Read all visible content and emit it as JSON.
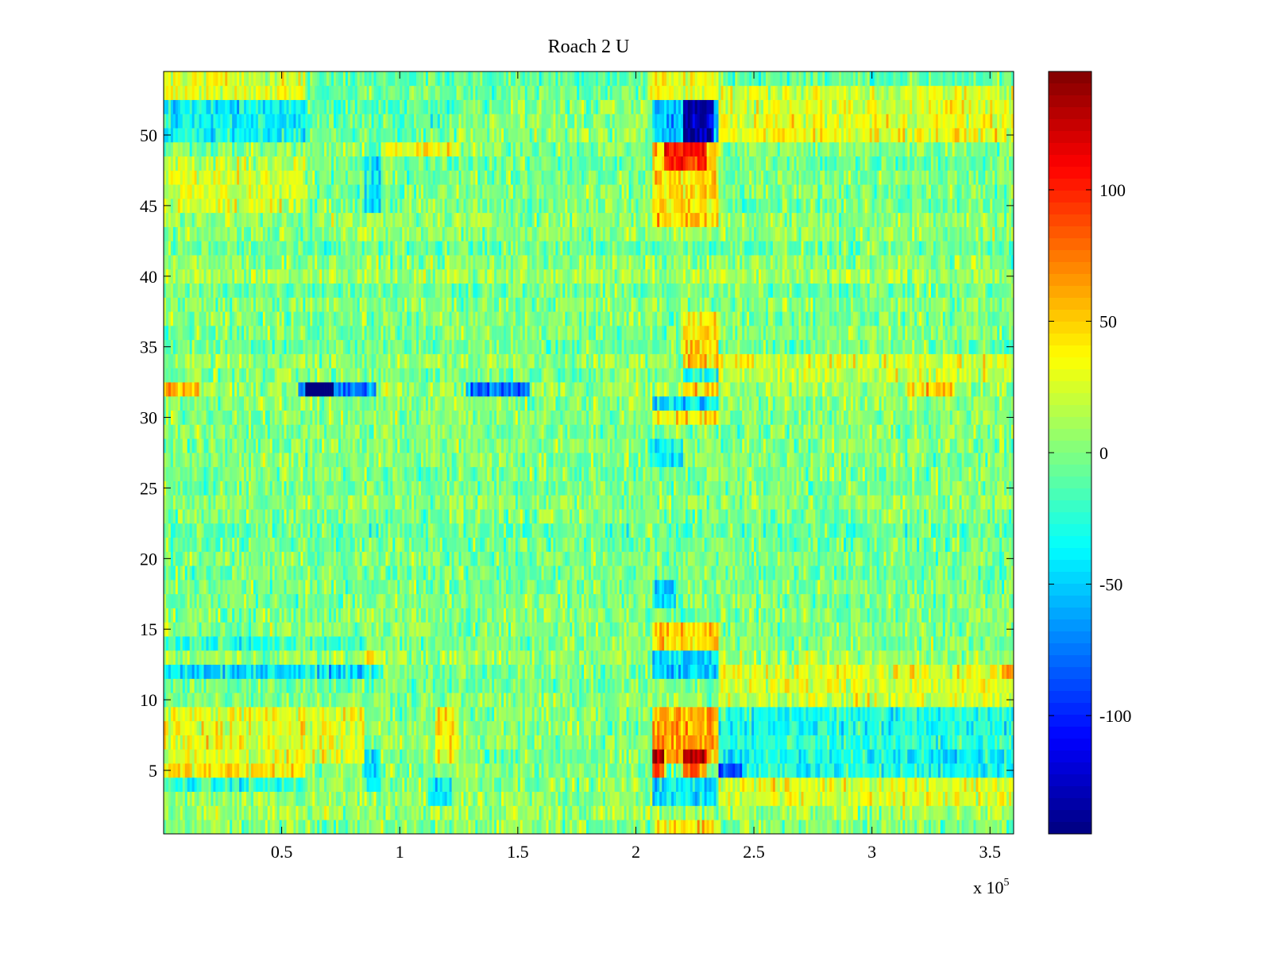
{
  "chart_data": {
    "type": "heatmap",
    "title": "Roach 2 U",
    "xlabel": "",
    "ylabel": "",
    "x_exponent_label": "x 10",
    "x_exponent_power": "5",
    "x_scale": 100000,
    "xlim": [
      0,
      3.6
    ],
    "ylim": [
      0.5,
      54.5
    ],
    "x_ticks": [
      0.5,
      1,
      1.5,
      2,
      2.5,
      3,
      3.5
    ],
    "x_tick_labels": [
      "0.5",
      "1",
      "1.5",
      "2",
      "2.5",
      "3",
      "3.5"
    ],
    "y_ticks": [
      5,
      10,
      15,
      20,
      25,
      30,
      35,
      40,
      45,
      50
    ],
    "y_tick_labels": [
      "5",
      "10",
      "15",
      "20",
      "25",
      "30",
      "35",
      "40",
      "45",
      "50"
    ],
    "rows": 54,
    "columns": 360,
    "colormap": "jet",
    "color_limits": [
      -145,
      145
    ],
    "colorbar_ticks": [
      100,
      50,
      0,
      -50,
      -100
    ],
    "colorbar_tick_labels": [
      "100",
      "50",
      "0",
      "-50",
      "-100"
    ],
    "noise_amplitude": 14,
    "noise_seed": 12345,
    "base_value": 0,
    "features": [
      {
        "x0": 0.0,
        "x1": 0.6,
        "y0": 4.5,
        "y1": 5.5,
        "value": 40
      },
      {
        "x0": 0.0,
        "x1": 0.85,
        "y0": 5.5,
        "y1": 9.5,
        "value": 28
      },
      {
        "x0": 0.0,
        "x1": 0.6,
        "y0": 3.5,
        "y1": 4.5,
        "value": -30
      },
      {
        "x0": 0.0,
        "x1": 0.9,
        "y0": 11.5,
        "y1": 12.5,
        "value": -40
      },
      {
        "x0": 0.0,
        "x1": 0.85,
        "y0": 13.5,
        "y1": 14.5,
        "value": -20
      },
      {
        "x0": 0.0,
        "x1": 0.6,
        "y0": 49.5,
        "y1": 52.5,
        "value": -38
      },
      {
        "x0": 0.0,
        "x1": 0.6,
        "y0": 52.5,
        "y1": 54.5,
        "value": 35
      },
      {
        "x0": 0.6,
        "x1": 1.25,
        "y0": 49.5,
        "y1": 52.5,
        "value": -12
      },
      {
        "x0": 0.0,
        "x1": 0.6,
        "y0": 44.5,
        "y1": 48.5,
        "value": 25
      },
      {
        "x0": 0.0,
        "x1": 0.15,
        "y0": 31.5,
        "y1": 32.5,
        "value": 45
      },
      {
        "x0": 0.57,
        "x1": 0.9,
        "y0": 31.5,
        "y1": 32.5,
        "value": -80
      },
      {
        "x0": 0.6,
        "x1": 0.72,
        "y0": 31.5,
        "y1": 32.5,
        "value": -125
      },
      {
        "x0": 1.28,
        "x1": 1.55,
        "y0": 31.5,
        "y1": 32.5,
        "value": -85
      },
      {
        "x0": 0.85,
        "x1": 0.92,
        "y0": 3.5,
        "y1": 6.5,
        "value": -45
      },
      {
        "x0": 0.85,
        "x1": 0.92,
        "y0": 12.5,
        "y1": 13.5,
        "value": 40
      },
      {
        "x0": 0.85,
        "x1": 0.92,
        "y0": 44.5,
        "y1": 49.5,
        "value": -40
      },
      {
        "x0": 0.85,
        "x1": 1.25,
        "y0": 48.5,
        "y1": 49.5,
        "value": 32
      },
      {
        "x0": 1.15,
        "x1": 1.25,
        "y0": 5.5,
        "y1": 9.5,
        "value": 40
      },
      {
        "x0": 1.12,
        "x1": 1.22,
        "y0": 2.5,
        "y1": 4.5,
        "value": -38
      },
      {
        "x0": 2.07,
        "x1": 2.35,
        "y0": 5.5,
        "y1": 9.5,
        "value": 60
      },
      {
        "x0": 2.07,
        "x1": 2.12,
        "y0": 4.5,
        "y1": 6.5,
        "value": 80
      },
      {
        "x0": 2.2,
        "x1": 2.3,
        "y0": 4.5,
        "y1": 6.5,
        "value": 75
      },
      {
        "x0": 2.07,
        "x1": 2.35,
        "y0": 2.5,
        "y1": 4.5,
        "value": -45
      },
      {
        "x0": 2.07,
        "x1": 2.35,
        "y0": 0.5,
        "y1": 1.5,
        "value": 42
      },
      {
        "x0": 2.07,
        "x1": 2.35,
        "y0": 11.5,
        "y1": 13.5,
        "value": -50
      },
      {
        "x0": 2.07,
        "x1": 2.35,
        "y0": 13.5,
        "y1": 15.5,
        "value": 48
      },
      {
        "x0": 2.07,
        "x1": 2.17,
        "y0": 16.5,
        "y1": 18.5,
        "value": -45
      },
      {
        "x0": 2.05,
        "x1": 2.2,
        "y0": 26.5,
        "y1": 28.5,
        "value": -35
      },
      {
        "x0": 2.07,
        "x1": 2.35,
        "y0": 29.5,
        "y1": 30.5,
        "value": 40
      },
      {
        "x0": 2.07,
        "x1": 2.35,
        "y0": 30.5,
        "y1": 31.5,
        "value": -45
      },
      {
        "x0": 2.2,
        "x1": 2.35,
        "y0": 31.5,
        "y1": 32.5,
        "value": 40
      },
      {
        "x0": 2.2,
        "x1": 2.35,
        "y0": 33.5,
        "y1": 37.5,
        "value": 45
      },
      {
        "x0": 2.2,
        "x1": 2.35,
        "y0": 32.5,
        "y1": 33.5,
        "value": -30
      },
      {
        "x0": 2.07,
        "x1": 2.35,
        "y0": 43.5,
        "y1": 49.5,
        "value": 45
      },
      {
        "x0": 2.12,
        "x1": 2.3,
        "y0": 47.5,
        "y1": 49.5,
        "value": 58
      },
      {
        "x0": 2.07,
        "x1": 2.35,
        "y0": 49.5,
        "y1": 52.5,
        "value": -55
      },
      {
        "x0": 2.2,
        "x1": 2.33,
        "y0": 49.5,
        "y1": 52.5,
        "value": -80
      },
      {
        "x0": 2.05,
        "x1": 2.35,
        "y0": 52.5,
        "y1": 54.5,
        "value": 40
      },
      {
        "x0": 2.35,
        "x1": 3.6,
        "y0": 4.5,
        "y1": 9.5,
        "value": -30
      },
      {
        "x0": 2.35,
        "x1": 2.45,
        "y0": 4.5,
        "y1": 5.5,
        "value": -60
      },
      {
        "x0": 2.35,
        "x1": 3.6,
        "y0": 9.5,
        "y1": 10.5,
        "value": 20
      },
      {
        "x0": 2.35,
        "x1": 3.6,
        "y0": 10.5,
        "y1": 12.5,
        "value": 30
      },
      {
        "x0": 2.35,
        "x1": 3.6,
        "y0": 2.5,
        "y1": 4.5,
        "value": 25
      },
      {
        "x0": 2.35,
        "x1": 3.6,
        "y0": 49.5,
        "y1": 53.5,
        "value": 28
      },
      {
        "x0": 2.35,
        "x1": 3.6,
        "y0": 32.5,
        "y1": 34.5,
        "value": 20
      },
      {
        "x0": 3.15,
        "x1": 3.35,
        "y0": 31.5,
        "y1": 32.5,
        "value": 40
      },
      {
        "x0": 3.55,
        "x1": 3.6,
        "y0": 11.5,
        "y1": 12.5,
        "value": 45
      }
    ]
  }
}
